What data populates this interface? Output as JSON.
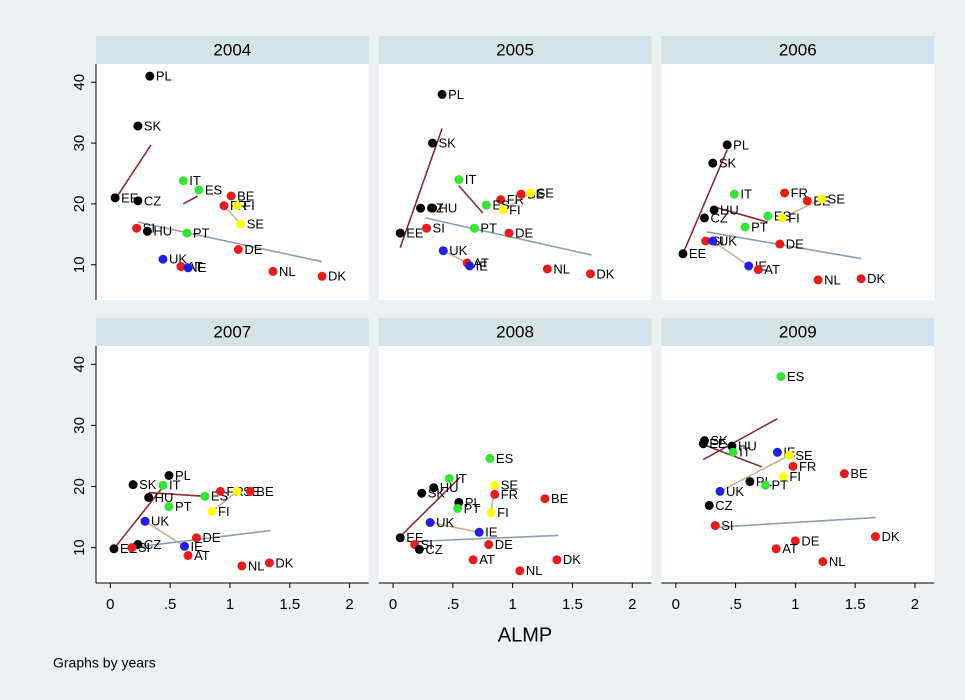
{
  "chart_data": [
    {
      "type": "scatter",
      "title": "2004",
      "points": [
        {
          "label": "PL",
          "x": 0.33,
          "y": 41,
          "color": "#000000"
        },
        {
          "label": "SK",
          "x": 0.23,
          "y": 32.8,
          "color": "#000000"
        },
        {
          "label": "EE",
          "x": 0.04,
          "y": 21,
          "color": "#000000"
        },
        {
          "label": "CZ",
          "x": 0.23,
          "y": 20.5,
          "color": "#000000"
        },
        {
          "label": "SI",
          "x": 0.22,
          "y": 16,
          "color": "#ea1b1b"
        },
        {
          "label": "HU",
          "x": 0.31,
          "y": 15.5,
          "color": "#000000"
        },
        {
          "label": "IT",
          "x": 0.61,
          "y": 23.8,
          "color": "#33e633"
        },
        {
          "label": "ES",
          "x": 0.74,
          "y": 22.3,
          "color": "#33e633"
        },
        {
          "label": "BE",
          "x": 1.01,
          "y": 21.3,
          "color": "#ea1b1b"
        },
        {
          "label": "FR",
          "x": 0.95,
          "y": 19.7,
          "color": "#ea1b1b"
        },
        {
          "label": "FI",
          "x": 1.06,
          "y": 19.7,
          "color": "#ffff00"
        },
        {
          "label": "SE",
          "x": 1.09,
          "y": 16.7,
          "color": "#ffff00"
        },
        {
          "label": "PT",
          "x": 0.64,
          "y": 15.2,
          "color": "#33e633"
        },
        {
          "label": "DE",
          "x": 1.07,
          "y": 12.5,
          "color": "#ea1b1b"
        },
        {
          "label": "UK",
          "x": 0.44,
          "y": 10.9,
          "color": "#1f1fe6"
        },
        {
          "label": "AT",
          "x": 0.59,
          "y": 9.7,
          "color": "#ea1b1b"
        },
        {
          "label": "IE",
          "x": 0.65,
          "y": 9.5,
          "color": "#1f1fe6"
        },
        {
          "label": "NL",
          "x": 1.36,
          "y": 8.9,
          "color": "#ea1b1b"
        },
        {
          "label": "DK",
          "x": 1.77,
          "y": 8.1,
          "color": "#ea1b1b"
        }
      ],
      "lines": [
        {
          "color": "#8b2a3a",
          "x": [
            0.04,
            0.34
          ],
          "y": [
            20.7,
            29.7
          ]
        },
        {
          "color": "#8b2a3a",
          "x": [
            0.61,
            0.73
          ],
          "y": [
            20,
            21.3
          ]
        },
        {
          "color": "#c8b487",
          "x": [
            0.95,
            1.09
          ],
          "y": [
            19.7,
            16.7
          ]
        },
        {
          "color": "#8c9fb5",
          "x": [
            0.23,
            1.77
          ],
          "y": [
            17,
            10.5
          ]
        }
      ]
    },
    {
      "type": "scatter",
      "title": "2005",
      "points": [
        {
          "label": "PL",
          "x": 0.41,
          "y": 38,
          "color": "#000000"
        },
        {
          "label": "SK",
          "x": 0.33,
          "y": 30,
          "color": "#000000"
        },
        {
          "label": "CZ",
          "x": 0.23,
          "y": 19.3,
          "color": "#000000"
        },
        {
          "label": "HU",
          "x": 0.33,
          "y": 19.3,
          "color": "#000000"
        },
        {
          "label": "EE",
          "x": 0.06,
          "y": 15.2,
          "color": "#000000"
        },
        {
          "label": "SI",
          "x": 0.28,
          "y": 16,
          "color": "#ea1b1b"
        },
        {
          "label": "IT",
          "x": 0.55,
          "y": 24,
          "color": "#33e633"
        },
        {
          "label": "FR",
          "x": 0.9,
          "y": 20.7,
          "color": "#ea1b1b"
        },
        {
          "label": "BE",
          "x": 1.07,
          "y": 21.6,
          "color": "#ea1b1b"
        },
        {
          "label": "SE",
          "x": 1.15,
          "y": 21.8,
          "color": "#ffff00"
        },
        {
          "label": "ES",
          "x": 0.78,
          "y": 19.8,
          "color": "#33e633"
        },
        {
          "label": "FI",
          "x": 0.92,
          "y": 19,
          "color": "#ffff00"
        },
        {
          "label": "PT",
          "x": 0.68,
          "y": 16,
          "color": "#33e633"
        },
        {
          "label": "DE",
          "x": 0.97,
          "y": 15.2,
          "color": "#ea1b1b"
        },
        {
          "label": "UK",
          "x": 0.42,
          "y": 12.3,
          "color": "#1f1fe6"
        },
        {
          "label": "AT",
          "x": 0.62,
          "y": 10.3,
          "color": "#ea1b1b"
        },
        {
          "label": "IE",
          "x": 0.64,
          "y": 9.8,
          "color": "#1f1fe6"
        },
        {
          "label": "NL",
          "x": 1.29,
          "y": 9.3,
          "color": "#ea1b1b"
        },
        {
          "label": "DK",
          "x": 1.65,
          "y": 8.5,
          "color": "#ea1b1b"
        }
      ],
      "lines": [
        {
          "color": "#8b2a3a",
          "x": [
            0.06,
            0.41
          ],
          "y": [
            12.8,
            32.4
          ]
        },
        {
          "color": "#8b2a3a",
          "x": [
            0.55,
            0.75
          ],
          "y": [
            23,
            18.5
          ]
        },
        {
          "color": "#c8b487",
          "x": [
            0.92,
            1.15
          ],
          "y": [
            19,
            21.8
          ]
        },
        {
          "color": "#c8b487",
          "x": [
            0.42,
            0.62
          ],
          "y": [
            12.3,
            10.3
          ]
        },
        {
          "color": "#8c9fb5",
          "x": [
            0.27,
            1.66
          ],
          "y": [
            17.7,
            11.6
          ]
        }
      ]
    },
    {
      "type": "scatter",
      "title": "2006",
      "points": [
        {
          "label": "PL",
          "x": 0.43,
          "y": 29.7,
          "color": "#000000"
        },
        {
          "label": "SK",
          "x": 0.31,
          "y": 26.7,
          "color": "#000000"
        },
        {
          "label": "EE",
          "x": 0.06,
          "y": 11.8,
          "color": "#000000"
        },
        {
          "label": "HU",
          "x": 0.32,
          "y": 19,
          "color": "#000000"
        },
        {
          "label": "CZ",
          "x": 0.24,
          "y": 17.7,
          "color": "#000000"
        },
        {
          "label": "IT",
          "x": 0.49,
          "y": 21.6,
          "color": "#33e633"
        },
        {
          "label": "FR",
          "x": 0.91,
          "y": 21.8,
          "color": "#ea1b1b"
        },
        {
          "label": "BE",
          "x": 1.1,
          "y": 20.5,
          "color": "#ea1b1b"
        },
        {
          "label": "SE",
          "x": 1.22,
          "y": 20.8,
          "color": "#ffff00"
        },
        {
          "label": "ES",
          "x": 0.77,
          "y": 18,
          "color": "#33e633"
        },
        {
          "label": "FI",
          "x": 0.89,
          "y": 17.7,
          "color": "#ffff00"
        },
        {
          "label": "PT",
          "x": 0.58,
          "y": 16.2,
          "color": "#33e633"
        },
        {
          "label": "DE",
          "x": 0.87,
          "y": 13.4,
          "color": "#ea1b1b"
        },
        {
          "label": "SI",
          "x": 0.25,
          "y": 13.9,
          "color": "#ea1b1b"
        },
        {
          "label": "UK",
          "x": 0.31,
          "y": 13.9,
          "color": "#1f1fe6"
        },
        {
          "label": "IE",
          "x": 0.61,
          "y": 9.8,
          "color": "#1f1fe6"
        },
        {
          "label": "AT",
          "x": 0.69,
          "y": 9.2,
          "color": "#ea1b1b"
        },
        {
          "label": "NL",
          "x": 1.19,
          "y": 7.5,
          "color": "#ea1b1b"
        },
        {
          "label": "DK",
          "x": 1.55,
          "y": 7.7,
          "color": "#ea1b1b"
        }
      ],
      "lines": [
        {
          "color": "#8b2a3a",
          "x": [
            0.06,
            0.43
          ],
          "y": [
            11.8,
            28.9
          ]
        },
        {
          "color": "#8b2a3a",
          "x": [
            0.32,
            0.77
          ],
          "y": [
            19.5,
            17
          ]
        },
        {
          "color": "#c8b487",
          "x": [
            0.89,
            1.22
          ],
          "y": [
            17.7,
            20.8
          ]
        },
        {
          "color": "#c8b487",
          "x": [
            0.31,
            0.61
          ],
          "y": [
            13.9,
            9.8
          ]
        },
        {
          "color": "#8c9fb5",
          "x": [
            0.26,
            1.55
          ],
          "y": [
            15.4,
            11
          ]
        }
      ]
    },
    {
      "type": "scatter",
      "title": "2007",
      "points": [
        {
          "label": "PL",
          "x": 0.49,
          "y": 21.8,
          "color": "#000000"
        },
        {
          "label": "SK",
          "x": 0.19,
          "y": 20.3,
          "color": "#000000"
        },
        {
          "label": "HU",
          "x": 0.32,
          "y": 18.2,
          "color": "#000000"
        },
        {
          "label": "EE",
          "x": 0.03,
          "y": 9.8,
          "color": "#000000"
        },
        {
          "label": "CZ",
          "x": 0.23,
          "y": 10.5,
          "color": "#000000"
        },
        {
          "label": "SI",
          "x": 0.18,
          "y": 10,
          "color": "#ea1b1b"
        },
        {
          "label": "IT",
          "x": 0.44,
          "y": 20.2,
          "color": "#33e633"
        },
        {
          "label": "ES",
          "x": 0.79,
          "y": 18.4,
          "color": "#33e633"
        },
        {
          "label": "PT",
          "x": 0.49,
          "y": 16.7,
          "color": "#33e633"
        },
        {
          "label": "FR",
          "x": 0.92,
          "y": 19.2,
          "color": "#ea1b1b"
        },
        {
          "label": "SE",
          "x": 1.06,
          "y": 19.2,
          "color": "#ffff00"
        },
        {
          "label": "FI",
          "x": 0.85,
          "y": 15.9,
          "color": "#ffff00"
        },
        {
          "label": "BE",
          "x": 1.17,
          "y": 19.2,
          "color": "#ea1b1b"
        },
        {
          "label": "UK",
          "x": 0.29,
          "y": 14.3,
          "color": "#1f1fe6"
        },
        {
          "label": "DE",
          "x": 0.72,
          "y": 11.6,
          "color": "#ea1b1b"
        },
        {
          "label": "IE",
          "x": 0.62,
          "y": 10.2,
          "color": "#1f1fe6"
        },
        {
          "label": "AT",
          "x": 0.65,
          "y": 8.7,
          "color": "#ea1b1b"
        },
        {
          "label": "NL",
          "x": 1.1,
          "y": 7,
          "color": "#ea1b1b"
        },
        {
          "label": "DK",
          "x": 1.33,
          "y": 7.5,
          "color": "#ea1b1b"
        }
      ],
      "lines": [
        {
          "color": "#8b2a3a",
          "x": [
            0.03,
            0.45
          ],
          "y": [
            9.8,
            20.2
          ]
        },
        {
          "color": "#8b2a3a",
          "x": [
            0.32,
            0.79
          ],
          "y": [
            19,
            18.4
          ]
        },
        {
          "color": "#c8b487",
          "x": [
            0.85,
            1.06
          ],
          "y": [
            15.9,
            19.2
          ]
        },
        {
          "color": "#c8b487",
          "x": [
            0.29,
            0.62
          ],
          "y": [
            14.3,
            10.2
          ]
        },
        {
          "color": "#8c9fb5",
          "x": [
            0.25,
            1.34
          ],
          "y": [
            10.2,
            12.8
          ]
        }
      ]
    },
    {
      "type": "scatter",
      "title": "2008",
      "points": [
        {
          "label": "ES",
          "x": 0.81,
          "y": 24.6,
          "color": "#33e633"
        },
        {
          "label": "IT",
          "x": 0.47,
          "y": 21.3,
          "color": "#33e633"
        },
        {
          "label": "HU",
          "x": 0.34,
          "y": 19.8,
          "color": "#000000"
        },
        {
          "label": "SK",
          "x": 0.24,
          "y": 18.9,
          "color": "#000000"
        },
        {
          "label": "SE",
          "x": 0.85,
          "y": 20.2,
          "color": "#ffff00"
        },
        {
          "label": "FR",
          "x": 0.85,
          "y": 18.7,
          "color": "#ea1b1b"
        },
        {
          "label": "BE",
          "x": 1.27,
          "y": 18,
          "color": "#ea1b1b"
        },
        {
          "label": "PL",
          "x": 0.55,
          "y": 17.4,
          "color": "#000000"
        },
        {
          "label": "PT",
          "x": 0.54,
          "y": 16.4,
          "color": "#33e633"
        },
        {
          "label": "FI",
          "x": 0.82,
          "y": 15.7,
          "color": "#ffff00"
        },
        {
          "label": "UK",
          "x": 0.31,
          "y": 14.1,
          "color": "#1f1fe6"
        },
        {
          "label": "IE",
          "x": 0.72,
          "y": 12.5,
          "color": "#1f1fe6"
        },
        {
          "label": "EE",
          "x": 0.06,
          "y": 11.6,
          "color": "#000000"
        },
        {
          "label": "SI",
          "x": 0.18,
          "y": 10.5,
          "color": "#ea1b1b"
        },
        {
          "label": "CZ",
          "x": 0.22,
          "y": 9.7,
          "color": "#000000"
        },
        {
          "label": "DE",
          "x": 0.8,
          "y": 10.5,
          "color": "#ea1b1b"
        },
        {
          "label": "AT",
          "x": 0.67,
          "y": 8,
          "color": "#ea1b1b"
        },
        {
          "label": "NL",
          "x": 1.06,
          "y": 6.2,
          "color": "#ea1b1b"
        },
        {
          "label": "DK",
          "x": 1.37,
          "y": 8,
          "color": "#ea1b1b"
        }
      ],
      "lines": [
        {
          "color": "#8b2a3a",
          "x": [
            0.06,
            0.56
          ],
          "y": [
            11.8,
            21.5
          ]
        },
        {
          "color": "#c8b487",
          "x": [
            0.82,
            0.85
          ],
          "y": [
            15.7,
            20.2
          ]
        },
        {
          "color": "#c8b487",
          "x": [
            0.31,
            0.72
          ],
          "y": [
            14.1,
            12.5
          ]
        },
        {
          "color": "#8c9fb5",
          "x": [
            0.18,
            1.38
          ],
          "y": [
            11,
            12
          ]
        }
      ]
    },
    {
      "type": "scatter",
      "title": "2009",
      "points": [
        {
          "label": "ES",
          "x": 0.88,
          "y": 38,
          "color": "#33e633"
        },
        {
          "label": "SK",
          "x": 0.24,
          "y": 27.5,
          "color": "#000000"
        },
        {
          "label": "EE",
          "x": 0.23,
          "y": 27,
          "color": "#000000"
        },
        {
          "label": "HU",
          "x": 0.47,
          "y": 26.6,
          "color": "#000000"
        },
        {
          "label": "IT",
          "x": 0.48,
          "y": 25.6,
          "color": "#33e633"
        },
        {
          "label": "IE",
          "x": 0.85,
          "y": 25.6,
          "color": "#1f1fe6"
        },
        {
          "label": "SE",
          "x": 0.95,
          "y": 25.1,
          "color": "#ffff00"
        },
        {
          "label": "FR",
          "x": 0.98,
          "y": 23.3,
          "color": "#ea1b1b"
        },
        {
          "label": "BE",
          "x": 1.41,
          "y": 22.1,
          "color": "#ea1b1b"
        },
        {
          "label": "FI",
          "x": 0.9,
          "y": 21.6,
          "color": "#ffff00"
        },
        {
          "label": "PL",
          "x": 0.62,
          "y": 20.8,
          "color": "#000000"
        },
        {
          "label": "PT",
          "x": 0.75,
          "y": 20.2,
          "color": "#33e633"
        },
        {
          "label": "UK",
          "x": 0.37,
          "y": 19.2,
          "color": "#1f1fe6"
        },
        {
          "label": "CZ",
          "x": 0.28,
          "y": 16.9,
          "color": "#000000"
        },
        {
          "label": "SI",
          "x": 0.33,
          "y": 13.6,
          "color": "#ea1b1b"
        },
        {
          "label": "DK",
          "x": 1.67,
          "y": 11.8,
          "color": "#ea1b1b"
        },
        {
          "label": "DE",
          "x": 1,
          "y": 11.1,
          "color": "#ea1b1b"
        },
        {
          "label": "AT",
          "x": 0.84,
          "y": 9.8,
          "color": "#ea1b1b"
        },
        {
          "label": "NL",
          "x": 1.23,
          "y": 7.7,
          "color": "#ea1b1b"
        }
      ],
      "lines": [
        {
          "color": "#8b2a3a",
          "x": [
            0.23,
            0.85
          ],
          "y": [
            24.4,
            31.1
          ]
        },
        {
          "color": "#8b2a3a",
          "x": [
            0.24,
            0.72
          ],
          "y": [
            26.8,
            23.2
          ]
        },
        {
          "color": "#c8b487",
          "x": [
            0.37,
            0.95
          ],
          "y": [
            19.2,
            25.1
          ]
        },
        {
          "color": "#8c9fb5",
          "x": [
            0.32,
            1.67
          ],
          "y": [
            13.3,
            14.9
          ]
        }
      ]
    }
  ],
  "axes": {
    "xlim": [
      -0.12,
      2.16
    ],
    "ylim": [
      4.2,
      43
    ],
    "xticks": [
      0,
      {
        "value": 0.5,
        "label": ".5"
      },
      1,
      1.5,
      2
    ],
    "yticks": [
      10,
      20,
      30,
      40
    ]
  },
  "xlabel": "ALMP",
  "note": "Graphs by years"
}
